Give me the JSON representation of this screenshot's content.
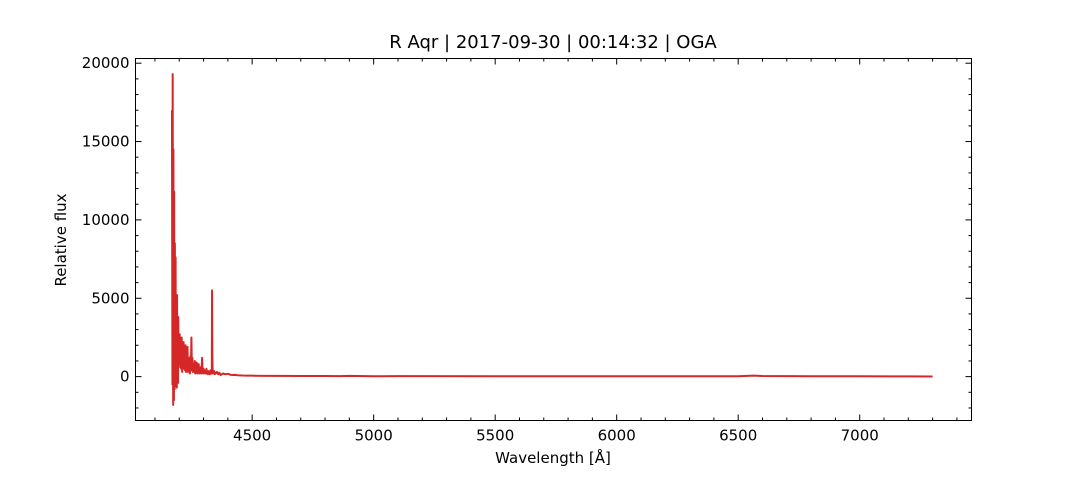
{
  "chart_data": {
    "type": "line",
    "title": "R Aqr | 2017-09-30 | 00:14:32 | OGA",
    "xlabel": "Wavelength [Å]",
    "ylabel": "Relative flux",
    "xlim": [
      4020,
      7460
    ],
    "ylim": [
      -2800,
      20300
    ],
    "x_ticks": [
      4500,
      5000,
      5500,
      6000,
      6500,
      7000
    ],
    "y_ticks": [
      0,
      5000,
      10000,
      15000,
      20000
    ],
    "x_minor_step": 100,
    "y_minor_step": 1000,
    "grid": false,
    "colors": {
      "series": "#d62728"
    },
    "series": [
      {
        "x": [
          4170,
          4172,
          4173,
          4174,
          4175,
          4176,
          4177,
          4178,
          4179,
          4180,
          4181,
          4182,
          4183,
          4184,
          4185,
          4186,
          4187,
          4188,
          4189,
          4190,
          4191,
          4192,
          4193,
          4194,
          4195,
          4196,
          4197,
          4198,
          4199,
          4200,
          4202,
          4204,
          4206,
          4208,
          4210,
          4212,
          4214,
          4216,
          4218,
          4220,
          4222,
          4224,
          4226,
          4228,
          4230,
          4232,
          4234,
          4236,
          4238,
          4240,
          4242,
          4244,
          4246,
          4248,
          4250,
          4252,
          4254,
          4256,
          4258,
          4260,
          4262,
          4264,
          4266,
          4268,
          4270,
          4272,
          4274,
          4276,
          4278,
          4280,
          4282,
          4284,
          4286,
          4288,
          4290,
          4292,
          4294,
          4296,
          4298,
          4300,
          4302,
          4304,
          4306,
          4308,
          4310,
          4312,
          4314,
          4316,
          4318,
          4320,
          4322,
          4324,
          4326,
          4328,
          4330,
          4332,
          4334,
          4335,
          4336,
          4337,
          4338,
          4339,
          4340,
          4342,
          4344,
          4346,
          4348,
          4350,
          4355,
          4360,
          4365,
          4370,
          4380,
          4390,
          4400,
          4410,
          4420,
          4430,
          4440,
          4450,
          4460,
          4480,
          4500,
          4550,
          4600,
          4700,
          4800,
          4861,
          4900,
          5000,
          5100,
          5500,
          6000,
          6300,
          6500,
          6563,
          6600,
          6800,
          7000,
          7200,
          7300
        ],
        "y": [
          17000,
          -500,
          19300,
          8000,
          -1800,
          14500,
          3000,
          -1500,
          11800,
          2500,
          -800,
          8500,
          1000,
          200,
          7600,
          500,
          -600,
          4000,
          1500,
          -700,
          5200,
          800,
          3000,
          600,
          -400,
          3800,
          1000,
          2600,
          800,
          1200,
          2700,
          600,
          2000,
          500,
          2500,
          300,
          1800,
          500,
          2200,
          800,
          1700,
          400,
          2000,
          300,
          1400,
          700,
          1900,
          300,
          1200,
          600,
          1100,
          200,
          1300,
          600,
          2500,
          400,
          1200,
          300,
          800,
          600,
          300,
          1000,
          200,
          700,
          400,
          900,
          200,
          600,
          300,
          800,
          200,
          500,
          300,
          600,
          200,
          400,
          1200,
          300,
          200,
          500,
          300,
          400,
          200,
          300,
          200,
          500,
          250,
          300,
          150,
          350,
          200,
          300,
          150,
          400,
          200,
          300,
          200,
          5500,
          1500,
          600,
          200,
          400,
          300,
          200,
          350,
          150,
          250,
          200,
          300,
          150,
          250,
          100,
          200,
          150,
          180,
          120,
          100,
          110,
          90,
          80,
          70,
          60,
          60,
          50,
          45,
          40,
          40,
          30,
          50,
          25,
          30,
          20,
          20,
          20,
          25,
          60,
          40,
          25,
          20,
          15,
          10
        ]
      }
    ]
  }
}
